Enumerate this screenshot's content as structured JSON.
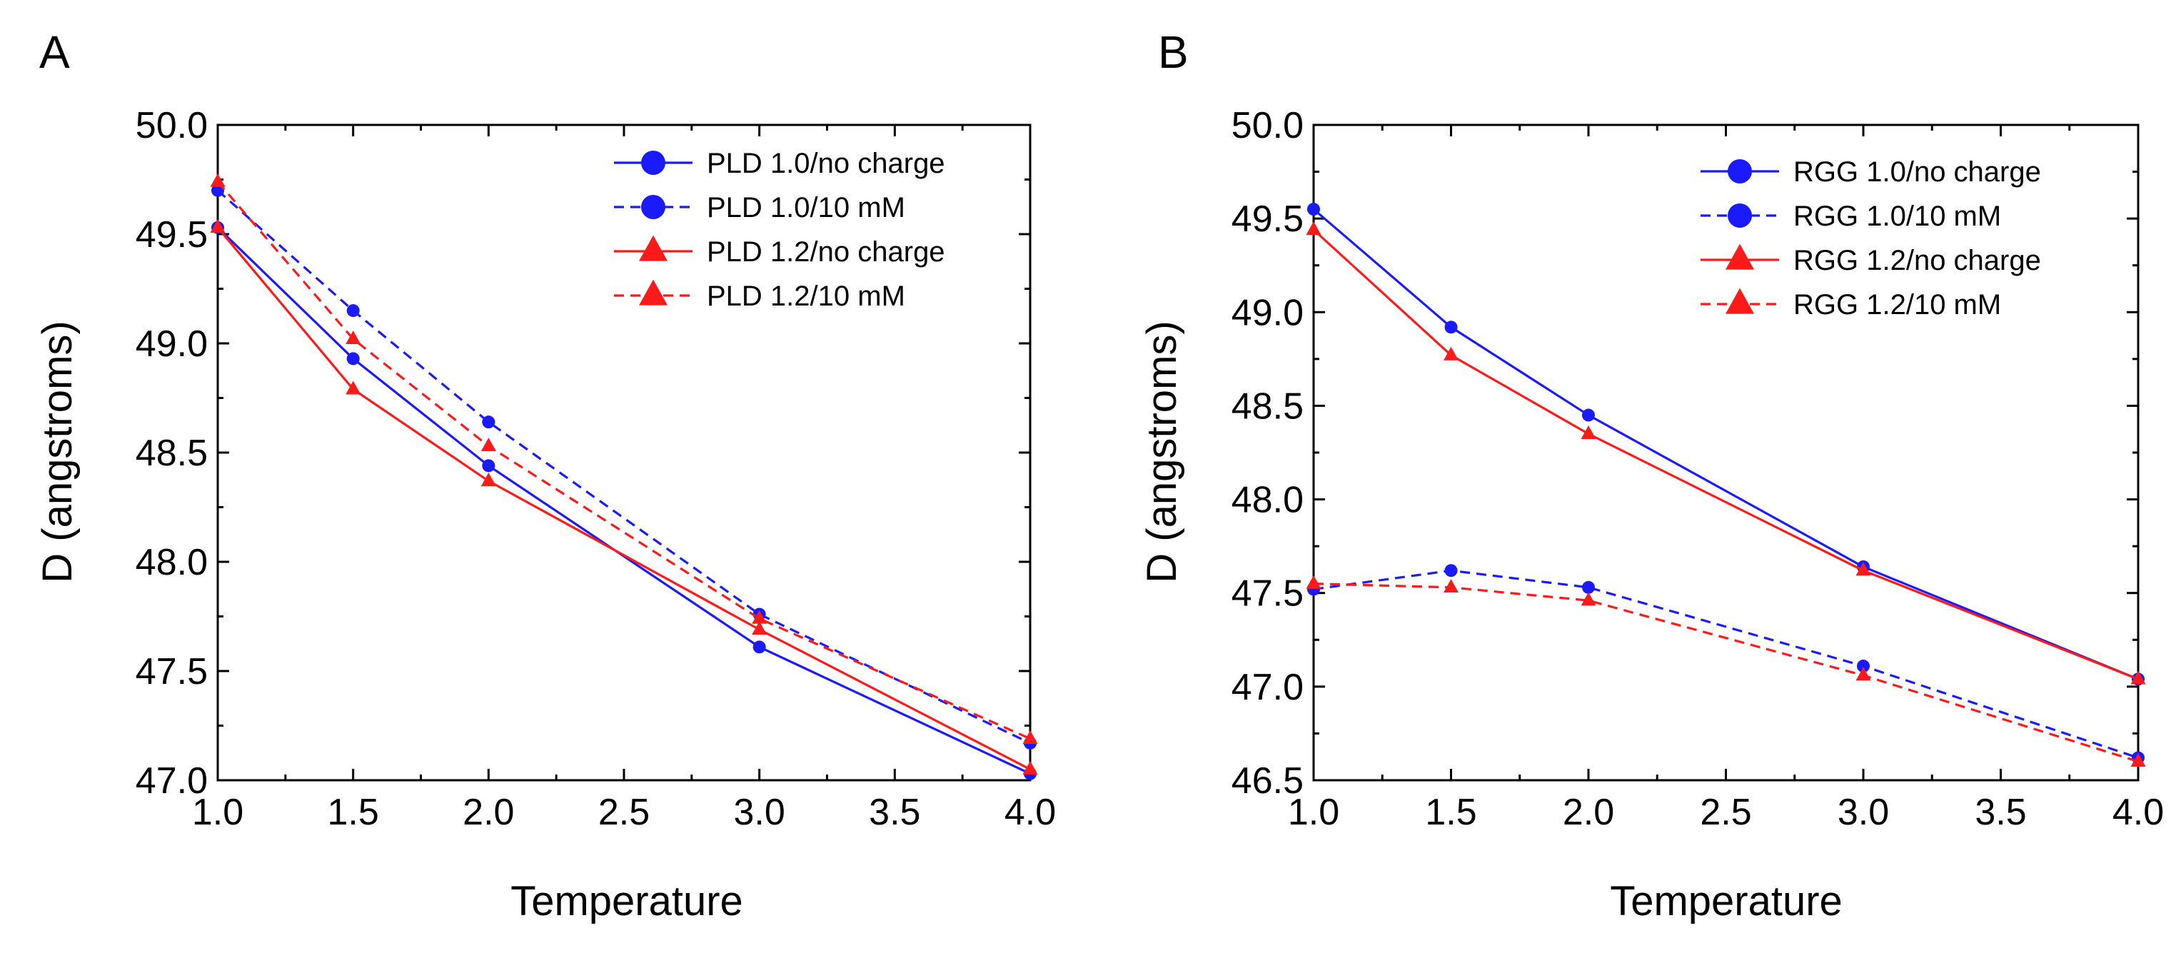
{
  "colors": {
    "blue": "#1a1aff",
    "red": "#ff1a1a",
    "axis": "#000000"
  },
  "chart_data": [
    {
      "panel": "A",
      "type": "line",
      "xlabel": "Temperature",
      "ylabel": "D (angstroms)",
      "xlim": [
        1.0,
        4.0
      ],
      "ylim": [
        47.0,
        50.0
      ],
      "xticks": [
        "1.0",
        "1.5",
        "2.0",
        "2.5",
        "3.0",
        "3.5",
        "4.0"
      ],
      "yticks": [
        "47.0",
        "47.5",
        "48.0",
        "48.5",
        "49.0",
        "49.5",
        "50.0"
      ],
      "legend_position": "top-right",
      "series": [
        {
          "name": "PLD 1.0/no charge",
          "color": "#1a1aff",
          "dash": "solid",
          "marker": "circle",
          "x": [
            1.0,
            1.5,
            2.0,
            3.0,
            4.0
          ],
          "values": [
            49.53,
            48.93,
            48.44,
            47.61,
            47.03
          ]
        },
        {
          "name": "PLD 1.0/10 mM",
          "color": "#1a1aff",
          "dash": "dashed",
          "marker": "circle",
          "x": [
            1.0,
            1.5,
            2.0,
            3.0,
            4.0
          ],
          "values": [
            49.7,
            49.15,
            48.64,
            47.76,
            47.17
          ]
        },
        {
          "name": "PLD 1.2/no charge",
          "color": "#ff1a1a",
          "dash": "solid",
          "marker": "triangle",
          "x": [
            1.0,
            1.5,
            2.0,
            3.0,
            4.0
          ],
          "values": [
            49.53,
            48.79,
            48.37,
            47.69,
            47.05
          ]
        },
        {
          "name": "PLD 1.2/10 mM",
          "color": "#ff1a1a",
          "dash": "dashed",
          "marker": "triangle",
          "x": [
            1.0,
            1.5,
            2.0,
            3.0,
            4.0
          ],
          "values": [
            49.74,
            49.02,
            48.53,
            47.74,
            47.19
          ]
        }
      ]
    },
    {
      "panel": "B",
      "type": "line",
      "xlabel": "Temperature",
      "ylabel": "D (angstroms)",
      "xlim": [
        1.0,
        4.0
      ],
      "ylim": [
        46.5,
        50.0
      ],
      "xticks": [
        "1.0",
        "1.5",
        "2.0",
        "2.5",
        "3.0",
        "3.5",
        "4.0"
      ],
      "yticks": [
        "46.5",
        "47.0",
        "47.5",
        "48.0",
        "48.5",
        "49.0",
        "49.5",
        "50.0"
      ],
      "legend_position": "top-right",
      "series": [
        {
          "name": "RGG 1.0/no charge",
          "color": "#1a1aff",
          "dash": "solid",
          "marker": "circle",
          "x": [
            1.0,
            1.5,
            2.0,
            3.0,
            4.0
          ],
          "values": [
            49.55,
            48.92,
            48.45,
            47.64,
            47.04
          ]
        },
        {
          "name": "RGG 1.0/10 mM",
          "color": "#1a1aff",
          "dash": "dashed",
          "marker": "circle",
          "x": [
            1.0,
            1.5,
            2.0,
            3.0,
            4.0
          ],
          "values": [
            47.52,
            47.62,
            47.53,
            47.11,
            46.62
          ]
        },
        {
          "name": "RGG 1.2/no charge",
          "color": "#ff1a1a",
          "dash": "solid",
          "marker": "triangle",
          "x": [
            1.0,
            1.5,
            2.0,
            3.0,
            4.0
          ],
          "values": [
            49.44,
            48.77,
            48.35,
            47.62,
            47.04
          ]
        },
        {
          "name": "RGG 1.2/10 mM",
          "color": "#ff1a1a",
          "dash": "dashed",
          "marker": "triangle",
          "x": [
            1.0,
            1.5,
            2.0,
            3.0,
            4.0
          ],
          "values": [
            47.55,
            47.53,
            47.46,
            47.06,
            46.6
          ]
        }
      ]
    }
  ]
}
